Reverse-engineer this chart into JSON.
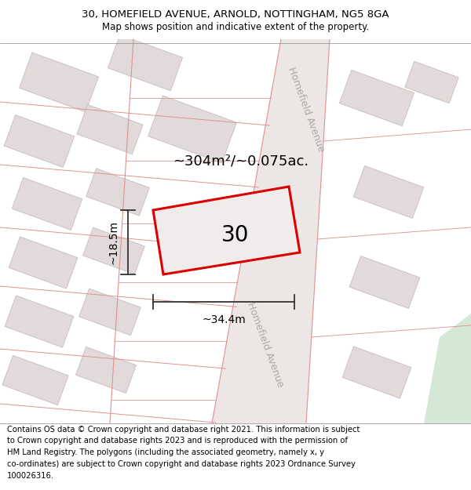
{
  "title_line1": "30, HOMEFIELD AVENUE, ARNOLD, NOTTINGHAM, NG5 8GA",
  "title_line2": "Map shows position and indicative extent of the property.",
  "footer_text": "Contains OS data © Crown copyright and database right 2021. This information is subject to Crown copyright and database rights 2023 and is reproduced with the permission of HM Land Registry. The polygons (including the associated geometry, namely x, y co-ordinates) are subject to Crown copyright and database rights 2023 Ordnance Survey 100026316.",
  "subject_label": "30",
  "area_label": "~304m²/~0.075ac.",
  "width_label": "~34.4m",
  "height_label": "~18.5m",
  "road_label": "Homefield Avenue",
  "map_bg": "#f7f3f3",
  "road_fill": "#ece6e6",
  "building_fill": "#e2dada",
  "building_edge": "#c8bcbc",
  "road_line_color": "#e8a0a0",
  "subject_fill": "#f0ecec",
  "subject_edge": "#dd0000",
  "green_fill": "#d5e8d5",
  "title_fontsize": 9.5,
  "subtitle_fontsize": 8.5,
  "footer_fontsize": 7.2
}
